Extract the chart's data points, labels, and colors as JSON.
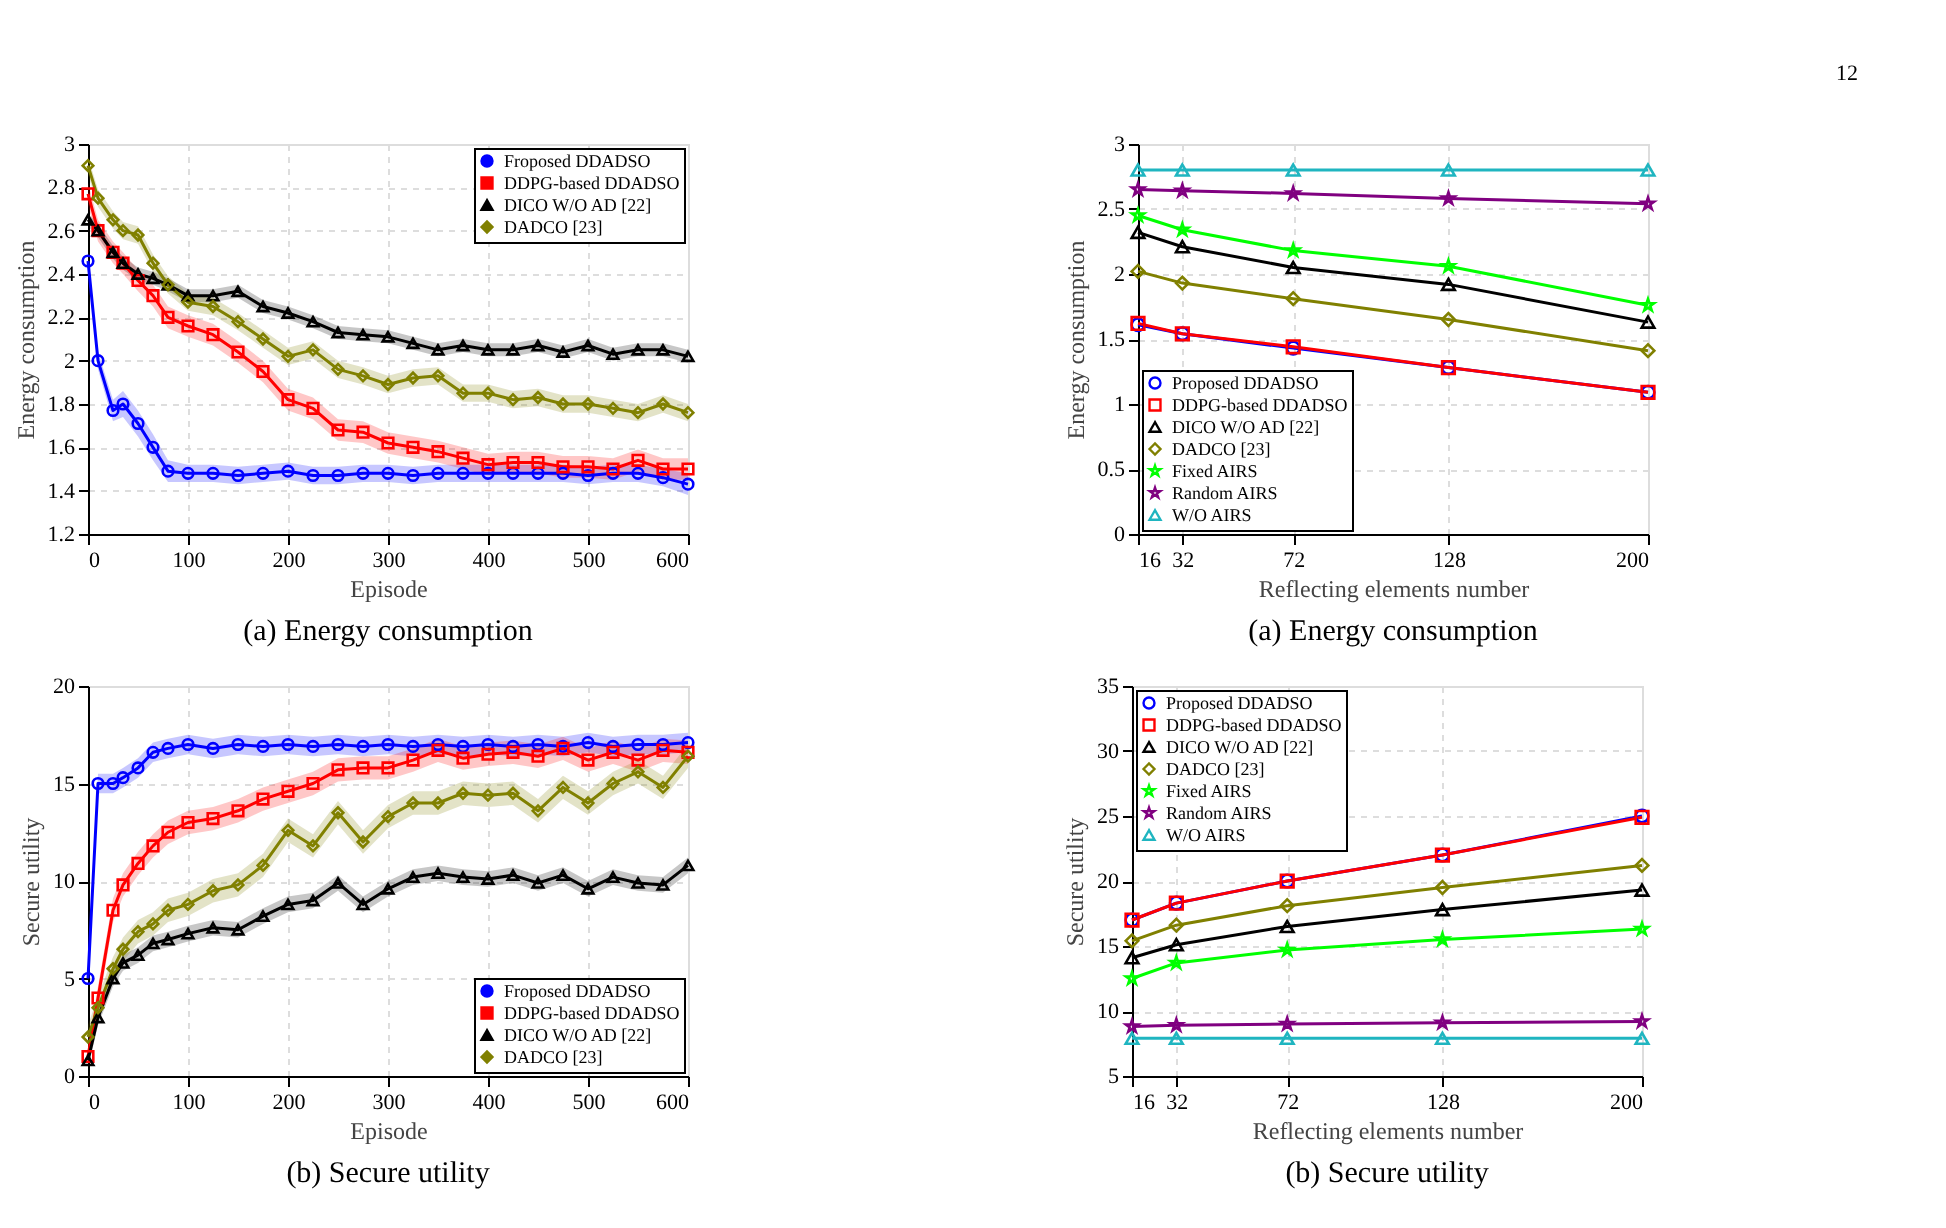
{
  "chart_data": [
    {
      "type": "line",
      "title": "(a) Energy consumption",
      "xlabel": "Episode",
      "ylabel": "Energy consumption",
      "xlim": [
        0,
        600
      ],
      "xticks": [
        0,
        100,
        200,
        300,
        400,
        500,
        600
      ],
      "ylim": [
        1.2,
        3
      ],
      "yticks": [
        1.2,
        1.4,
        1.6,
        1.8,
        2,
        2.2,
        2.4,
        2.6,
        2.8,
        3
      ],
      "grid": true,
      "legend": "top right",
      "line_style": "solid",
      "x": [
        0,
        10,
        25,
        35,
        50,
        65,
        80,
        100,
        125,
        150,
        175,
        200,
        225,
        250,
        275,
        300,
        325,
        350,
        375,
        400,
        425,
        450,
        475,
        500,
        525,
        550,
        575,
        600
      ],
      "series": [
        {
          "name": "Froposed DDADSO",
          "color": "#0000ff",
          "marker": "circle",
          "values": [
            2.46,
            2.0,
            1.77,
            1.8,
            1.71,
            1.6,
            1.49,
            1.48,
            1.48,
            1.47,
            1.48,
            1.49,
            1.47,
            1.47,
            1.48,
            1.48,
            1.47,
            1.48,
            1.48,
            1.48,
            1.48,
            1.48,
            1.48,
            1.47,
            1.48,
            1.48,
            1.46,
            1.43
          ],
          "lower": [
            2.42,
            1.96,
            1.72,
            1.74,
            1.65,
            1.54,
            1.44,
            1.44,
            1.44,
            1.43,
            1.44,
            1.45,
            1.43,
            1.43,
            1.44,
            1.44,
            1.43,
            1.44,
            1.44,
            1.44,
            1.44,
            1.44,
            1.44,
            1.43,
            1.44,
            1.44,
            1.42,
            1.38
          ],
          "upper": [
            2.5,
            2.04,
            1.82,
            1.86,
            1.77,
            1.66,
            1.54,
            1.52,
            1.52,
            1.51,
            1.52,
            1.53,
            1.51,
            1.51,
            1.52,
            1.52,
            1.51,
            1.52,
            1.52,
            1.52,
            1.52,
            1.52,
            1.52,
            1.51,
            1.52,
            1.52,
            1.5,
            1.48
          ]
        },
        {
          "name": "DDPG-based DDADSO",
          "color": "#ff0000",
          "marker": "square",
          "values": [
            2.77,
            2.6,
            2.5,
            2.45,
            2.37,
            2.3,
            2.2,
            2.16,
            2.12,
            2.04,
            1.95,
            1.82,
            1.78,
            1.68,
            1.67,
            1.62,
            1.6,
            1.58,
            1.55,
            1.52,
            1.53,
            1.53,
            1.51,
            1.51,
            1.5,
            1.54,
            1.5,
            1.5
          ],
          "lower": [
            2.72,
            2.55,
            2.45,
            2.4,
            2.32,
            2.25,
            2.15,
            2.11,
            2.07,
            1.99,
            1.9,
            1.77,
            1.73,
            1.63,
            1.62,
            1.57,
            1.55,
            1.53,
            1.5,
            1.47,
            1.48,
            1.48,
            1.46,
            1.46,
            1.45,
            1.49,
            1.45,
            1.45
          ],
          "upper": [
            2.82,
            2.65,
            2.55,
            2.5,
            2.42,
            2.35,
            2.25,
            2.21,
            2.17,
            2.09,
            2.0,
            1.87,
            1.83,
            1.73,
            1.72,
            1.67,
            1.65,
            1.63,
            1.6,
            1.57,
            1.58,
            1.58,
            1.56,
            1.56,
            1.55,
            1.59,
            1.55,
            1.55
          ]
        },
        {
          "name": "DICO W/O AD [22]",
          "color": "#000000",
          "marker": "triangle",
          "values": [
            2.65,
            2.6,
            2.5,
            2.45,
            2.4,
            2.38,
            2.35,
            2.3,
            2.3,
            2.32,
            2.25,
            2.22,
            2.18,
            2.13,
            2.12,
            2.11,
            2.08,
            2.05,
            2.07,
            2.05,
            2.05,
            2.07,
            2.04,
            2.07,
            2.03,
            2.05,
            2.05,
            2.02
          ],
          "lower": [
            2.62,
            2.57,
            2.47,
            2.42,
            2.37,
            2.35,
            2.32,
            2.27,
            2.27,
            2.29,
            2.22,
            2.19,
            2.15,
            2.1,
            2.09,
            2.08,
            2.05,
            2.02,
            2.04,
            2.02,
            2.02,
            2.04,
            2.01,
            2.04,
            2.0,
            2.02,
            2.02,
            1.99
          ],
          "upper": [
            2.68,
            2.63,
            2.53,
            2.48,
            2.43,
            2.41,
            2.38,
            2.33,
            2.33,
            2.35,
            2.28,
            2.25,
            2.21,
            2.16,
            2.15,
            2.14,
            2.11,
            2.08,
            2.1,
            2.08,
            2.08,
            2.1,
            2.07,
            2.1,
            2.06,
            2.08,
            2.08,
            2.05
          ]
        },
        {
          "name": "DADCO [23]",
          "color": "#808000",
          "marker": "diamond",
          "values": [
            2.9,
            2.75,
            2.65,
            2.6,
            2.58,
            2.45,
            2.35,
            2.27,
            2.25,
            2.18,
            2.1,
            2.02,
            2.05,
            1.96,
            1.93,
            1.89,
            1.92,
            1.93,
            1.85,
            1.85,
            1.82,
            1.83,
            1.8,
            1.8,
            1.78,
            1.76,
            1.8,
            1.76
          ],
          "lower": [
            2.86,
            2.71,
            2.61,
            2.56,
            2.54,
            2.41,
            2.31,
            2.23,
            2.21,
            2.14,
            2.06,
            1.98,
            2.01,
            1.92,
            1.89,
            1.85,
            1.88,
            1.89,
            1.81,
            1.81,
            1.78,
            1.79,
            1.76,
            1.76,
            1.74,
            1.72,
            1.76,
            1.72
          ],
          "upper": [
            2.94,
            2.79,
            2.69,
            2.64,
            2.62,
            2.49,
            2.39,
            2.31,
            2.29,
            2.22,
            2.14,
            2.06,
            2.09,
            2.0,
            1.97,
            1.93,
            1.96,
            1.97,
            1.89,
            1.89,
            1.86,
            1.87,
            1.84,
            1.84,
            1.82,
            1.8,
            1.84,
            1.8
          ]
        }
      ]
    },
    {
      "type": "line",
      "title": "(a) Energy consumption",
      "xlabel": "Reflecting elements number",
      "ylabel": "Energy consumption",
      "xlim": [
        16,
        200
      ],
      "xticks": [
        16,
        32,
        72,
        128,
        200
      ],
      "ylim": [
        0,
        3
      ],
      "yticks": [
        0,
        0.5,
        1,
        1.5,
        2,
        2.5,
        3
      ],
      "grid": true,
      "legend": "bottom left",
      "line_style": "solid",
      "annotations": [
        "12"
      ],
      "x": [
        16,
        32,
        72,
        128,
        200
      ],
      "series": [
        {
          "name": "Proposed DDADSO",
          "color": "#0000ff",
          "marker": "circle",
          "values": [
            1.61,
            1.54,
            1.43,
            1.28,
            1.09
          ]
        },
        {
          "name": "DDPG-based DDADSO",
          "color": "#ff0000",
          "marker": "square",
          "values": [
            1.62,
            1.54,
            1.44,
            1.28,
            1.09
          ]
        },
        {
          "name": "DICO W/O AD [22]",
          "color": "#000000",
          "marker": "triangle",
          "values": [
            2.32,
            2.21,
            2.05,
            1.92,
            1.63
          ]
        },
        {
          "name": "DADCO [23]",
          "color": "#808000",
          "marker": "diamond",
          "values": [
            2.02,
            1.93,
            1.81,
            1.65,
            1.41
          ]
        },
        {
          "name": "Fixed AIRS",
          "color": "#00ff00",
          "marker": "star",
          "values": [
            2.45,
            2.34,
            2.18,
            2.06,
            1.76
          ]
        },
        {
          "name": "Random AIRS",
          "color": "#800080",
          "marker": "star",
          "values": [
            2.65,
            2.64,
            2.62,
            2.58,
            2.54
          ]
        },
        {
          "name": "W/O AIRS",
          "color": "#1fb5c0",
          "marker": "triangle",
          "values": [
            2.8,
            2.8,
            2.8,
            2.8,
            2.8
          ]
        }
      ]
    },
    {
      "type": "line",
      "title": "(b) Secure utility",
      "xlabel": "Episode",
      "ylabel": "Secure utility",
      "xlim": [
        0,
        600
      ],
      "xticks": [
        0,
        100,
        200,
        300,
        400,
        500,
        600
      ],
      "ylim": [
        0,
        20
      ],
      "yticks": [
        0,
        5,
        10,
        15,
        20
      ],
      "grid": true,
      "legend": "bottom right",
      "line_style": "solid",
      "x": [
        0,
        10,
        25,
        35,
        50,
        65,
        80,
        100,
        125,
        150,
        175,
        200,
        225,
        250,
        275,
        300,
        325,
        350,
        375,
        400,
        425,
        450,
        475,
        500,
        525,
        550,
        575,
        600
      ],
      "series": [
        {
          "name": "Froposed DDADSO",
          "color": "#0000ff",
          "marker": "circle",
          "values": [
            5,
            15,
            15,
            15.3,
            15.8,
            16.6,
            16.8,
            17,
            16.8,
            17,
            16.9,
            17,
            16.9,
            17,
            16.9,
            17,
            16.9,
            17,
            16.9,
            17,
            16.9,
            17,
            16.9,
            17.1,
            16.9,
            17,
            17,
            17.1
          ],
          "lower": [
            4.5,
            14.5,
            14.5,
            14.8,
            15.3,
            16.1,
            16.3,
            16.5,
            16.3,
            16.5,
            16.4,
            16.5,
            16.4,
            16.5,
            16.4,
            16.5,
            16.4,
            16.5,
            16.4,
            16.5,
            16.4,
            16.5,
            16.4,
            16.6,
            16.4,
            16.5,
            16.5,
            16.6
          ],
          "upper": [
            5.5,
            15.5,
            15.5,
            15.8,
            16.3,
            17.1,
            17.3,
            17.5,
            17.3,
            17.5,
            17.4,
            17.5,
            17.4,
            17.5,
            17.4,
            17.5,
            17.4,
            17.5,
            17.4,
            17.5,
            17.4,
            17.5,
            17.4,
            17.6,
            17.4,
            17.5,
            17.5,
            17.6
          ]
        },
        {
          "name": "DDPG-based DDADSO",
          "color": "#ff0000",
          "marker": "square",
          "values": [
            1,
            4,
            8.5,
            9.8,
            10.9,
            11.8,
            12.5,
            13,
            13.2,
            13.6,
            14.2,
            14.6,
            15,
            15.7,
            15.8,
            15.8,
            16.2,
            16.7,
            16.3,
            16.5,
            16.6,
            16.4,
            16.8,
            16.2,
            16.6,
            16.2,
            16.7,
            16.6
          ],
          "lower": [
            0.4,
            3.4,
            7.9,
            9.2,
            10.3,
            11.2,
            11.9,
            12.4,
            12.6,
            13,
            13.6,
            14,
            14.4,
            15.1,
            15.2,
            15.2,
            15.6,
            16.1,
            15.7,
            15.9,
            16,
            15.8,
            16.2,
            15.6,
            16,
            15.6,
            16.1,
            16
          ],
          "upper": [
            1.6,
            4.6,
            9.1,
            10.4,
            11.5,
            12.4,
            13.1,
            13.6,
            13.8,
            14.2,
            14.8,
            15.2,
            15.6,
            16.3,
            16.4,
            16.4,
            16.8,
            17.3,
            16.9,
            17.1,
            17.2,
            17,
            17.4,
            16.8,
            17.2,
            16.8,
            17.3,
            17.2
          ]
        },
        {
          "name": "DICO W/O AD [22]",
          "color": "#000000",
          "marker": "triangle",
          "values": [
            0.8,
            3,
            5,
            5.8,
            6.2,
            6.8,
            7,
            7.3,
            7.6,
            7.5,
            8.2,
            8.8,
            9,
            9.9,
            8.8,
            9.6,
            10.2,
            10.4,
            10.2,
            10.1,
            10.3,
            9.9,
            10.3,
            9.6,
            10.2,
            9.9,
            9.8,
            10.8
          ],
          "lower": [
            0.4,
            2.6,
            4.6,
            5.4,
            5.8,
            6.4,
            6.6,
            6.9,
            7.2,
            7.1,
            7.8,
            8.4,
            8.6,
            9.5,
            8.4,
            9.2,
            9.8,
            10,
            9.8,
            9.7,
            9.9,
            9.5,
            9.9,
            9.2,
            9.8,
            9.5,
            9.4,
            10.4
          ],
          "upper": [
            1.2,
            3.4,
            5.4,
            6.2,
            6.6,
            7.2,
            7.4,
            7.7,
            8,
            7.9,
            8.6,
            9.2,
            9.4,
            10.3,
            9.2,
            10,
            10.6,
            10.8,
            10.6,
            10.5,
            10.7,
            10.3,
            10.7,
            10,
            10.6,
            10.3,
            10.2,
            11.2
          ]
        },
        {
          "name": "DADCO [23]",
          "color": "#808000",
          "marker": "diamond",
          "values": [
            2,
            3.5,
            5.5,
            6.5,
            7.4,
            7.8,
            8.5,
            8.8,
            9.5,
            9.8,
            10.8,
            12.6,
            11.8,
            13.5,
            12,
            13.3,
            14,
            14,
            14.5,
            14.4,
            14.5,
            13.6,
            14.8,
            14,
            15,
            15.6,
            14.8,
            16.4
          ],
          "lower": [
            1.4,
            2.9,
            4.9,
            5.9,
            6.8,
            7.2,
            7.9,
            8.2,
            8.9,
            9.2,
            10.2,
            12,
            11.2,
            12.9,
            11.4,
            12.7,
            13.4,
            13.4,
            13.9,
            13.8,
            13.9,
            13,
            14.2,
            13.4,
            14.4,
            15,
            14.2,
            15.8
          ],
          "upper": [
            2.6,
            4.1,
            6.1,
            7.1,
            8,
            8.4,
            9.1,
            9.4,
            10.1,
            10.4,
            11.4,
            13.2,
            12.4,
            14.1,
            12.6,
            13.9,
            14.6,
            14.6,
            15.1,
            15,
            15.1,
            14.2,
            15.4,
            14.6,
            15.6,
            16.2,
            15.4,
            17
          ]
        }
      ]
    },
    {
      "type": "line",
      "title": "(b) Secure utility",
      "xlabel": "Reflecting elements number",
      "ylabel": "Secure utility",
      "xlim": [
        16,
        200
      ],
      "xticks": [
        16,
        32,
        72,
        128,
        200
      ],
      "ylim": [
        5,
        35
      ],
      "yticks": [
        5,
        10,
        15,
        20,
        25,
        30,
        35
      ],
      "grid": true,
      "legend": "top left",
      "line_style": "solid",
      "x": [
        16,
        32,
        72,
        128,
        200
      ],
      "series": [
        {
          "name": "Proposed DDADSO",
          "color": "#0000ff",
          "marker": "circle",
          "values": [
            17,
            18.3,
            20,
            22,
            25
          ]
        },
        {
          "name": "DDPG-based DDADSO",
          "color": "#ff0000",
          "marker": "square",
          "values": [
            17,
            18.3,
            20,
            22,
            24.9
          ]
        },
        {
          "name": "DICO W/O AD [22]",
          "color": "#000000",
          "marker": "triangle",
          "values": [
            14.1,
            15.1,
            16.5,
            17.8,
            19.3
          ]
        },
        {
          "name": "DADCO [23]",
          "color": "#808000",
          "marker": "diamond",
          "values": [
            15.4,
            16.6,
            18.1,
            19.5,
            21.2
          ]
        },
        {
          "name": "Fixed AIRS",
          "color": "#00ff00",
          "marker": "star",
          "values": [
            12.5,
            13.7,
            14.7,
            15.5,
            16.3
          ]
        },
        {
          "name": "Random AIRS",
          "color": "#800080",
          "marker": "star",
          "values": [
            8.8,
            8.9,
            9.0,
            9.1,
            9.2
          ]
        },
        {
          "name": "W/O AIRS",
          "color": "#1fb5c0",
          "marker": "triangle",
          "values": [
            7.9,
            7.9,
            7.9,
            7.9,
            7.9
          ]
        }
      ]
    }
  ]
}
